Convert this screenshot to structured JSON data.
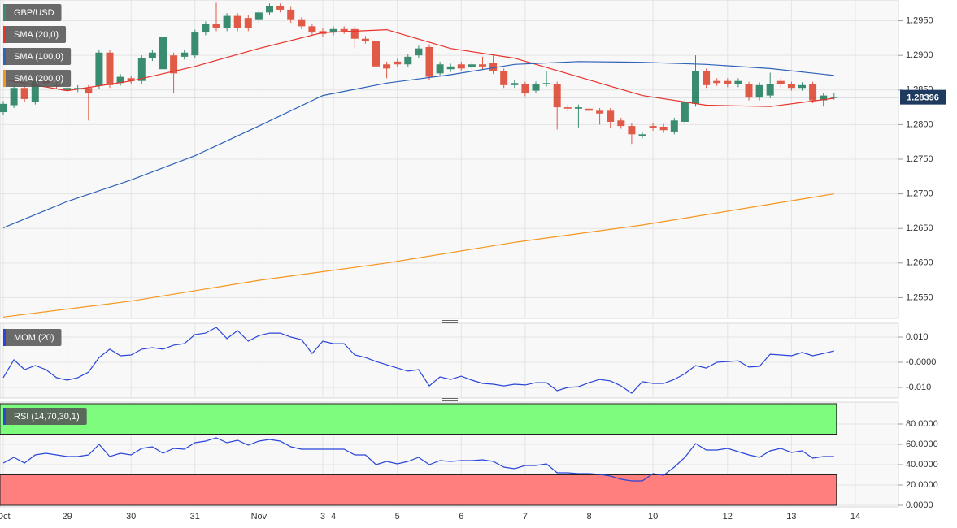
{
  "chart_data": [
    {
      "type": "candlestick",
      "categories": [
        "Oct",
        null,
        null,
        null,
        null,
        null,
        "29",
        null,
        null,
        null,
        null,
        null,
        "30",
        null,
        null,
        null,
        null,
        null,
        "31",
        null,
        null,
        null,
        null,
        null,
        "Nov",
        null,
        null,
        null,
        null,
        null,
        "3",
        "4",
        null,
        null,
        null,
        null,
        null,
        "5",
        null,
        null,
        null,
        null,
        null,
        "6",
        null,
        null,
        null,
        null,
        null,
        "7",
        null,
        null,
        null,
        null,
        null,
        "8",
        null,
        null,
        null,
        null,
        null,
        "10",
        null,
        null,
        null,
        null,
        null,
        null,
        "12",
        null,
        null,
        null,
        null,
        null,
        "13",
        null,
        null,
        null,
        null,
        null,
        "14"
      ],
      "series": [
        {
          "name": "GBP/USD",
          "color": "#3a8c70",
          "up_color": "#3a8c70",
          "down_color": "#e05a47",
          "open": [
            1.2818,
            1.2828,
            1.2853,
            1.2833,
            1.2863,
            1.2857,
            1.2849,
            1.2851,
            1.2853,
            1.2856,
            1.2904,
            1.286,
            1.2867,
            1.2863,
            1.2896,
            1.288,
            1.29,
            1.2898,
            1.29,
            1.2933,
            1.2945,
            1.2939,
            1.2957,
            1.2954,
            1.2951,
            1.2962,
            1.2971,
            1.2966,
            1.2951,
            1.2942,
            1.2935,
            1.2933,
            1.2938,
            1.2938,
            1.2924,
            1.2921,
            1.2887,
            1.2891,
            1.2887,
            1.29,
            1.2912,
            1.2874,
            1.288,
            1.2887,
            1.2883,
            1.2887,
            1.2889,
            1.2877,
            1.2857,
            1.2858,
            1.2849,
            1.2859,
            1.2858,
            1.2825,
            1.2823,
            1.2823,
            1.282,
            1.282,
            1.2806,
            1.2798,
            1.2784,
            1.2798,
            1.2797,
            1.279,
            1.2804,
            1.283,
            1.2877,
            1.2863,
            1.2863,
            1.2858,
            1.2858,
            1.2839,
            1.2842,
            1.2863,
            1.2858,
            1.2853,
            1.2858,
            1.2835,
            1.2839,
            null,
            null
          ],
          "high": [
            1.2834,
            1.2857,
            1.2857,
            1.2867,
            1.2867,
            1.2861,
            1.2857,
            1.2857,
            1.2857,
            1.2908,
            1.2908,
            1.2873,
            1.2871,
            1.29,
            1.2908,
            1.2931,
            1.2904,
            1.2908,
            1.2937,
            1.2949,
            1.2976,
            1.2961,
            1.2961,
            1.2958,
            1.2966,
            1.2975,
            1.2975,
            1.297,
            1.2955,
            1.2946,
            1.2939,
            1.2942,
            1.2942,
            1.2942,
            1.2928,
            1.2925,
            1.2891,
            1.2895,
            1.2902,
            1.2914,
            1.2916,
            1.2891,
            1.2888,
            1.2891,
            1.2891,
            1.2898,
            1.29,
            1.2881,
            1.2864,
            1.2862,
            1.2862,
            1.2877,
            1.2862,
            1.2829,
            1.2829,
            1.2827,
            1.2824,
            1.2824,
            1.281,
            1.2802,
            1.279,
            1.2802,
            1.2801,
            1.281,
            1.2837,
            1.29,
            1.2881,
            1.2867,
            1.2867,
            1.2867,
            1.2862,
            1.2861,
            1.2875,
            1.2867,
            1.2862,
            1.2861,
            1.2862,
            1.2846,
            1.2846,
            null,
            null
          ],
          "low": [
            1.2814,
            1.2824,
            1.2833,
            1.2829,
            1.2856,
            1.2852,
            1.2845,
            1.2847,
            1.2806,
            1.2852,
            1.2853,
            1.2856,
            1.2859,
            1.2859,
            1.2892,
            1.2876,
            1.2845,
            1.2894,
            1.2896,
            1.2929,
            1.2935,
            1.2935,
            1.2935,
            1.2935,
            1.2947,
            1.2958,
            1.2962,
            1.2947,
            1.2938,
            1.2929,
            1.2927,
            1.2929,
            1.2931,
            1.291,
            1.2917,
            1.288,
            1.2867,
            1.2883,
            1.2883,
            1.2896,
            1.2865,
            1.287,
            1.2876,
            1.2877,
            1.2879,
            1.288,
            1.2873,
            1.2853,
            1.2853,
            1.2841,
            1.2845,
            1.2855,
            1.2793,
            1.2819,
            1.2796,
            1.2816,
            1.28,
            1.2795,
            1.2794,
            1.2772,
            1.278,
            1.2791,
            1.2788,
            1.2786,
            1.28,
            1.2826,
            1.2853,
            1.2856,
            1.2854,
            1.2854,
            1.2835,
            1.2835,
            1.2838,
            1.2854,
            1.2849,
            1.2849,
            1.2831,
            1.2826,
            1.2836,
            null,
            null
          ],
          "close": [
            1.283,
            1.2853,
            1.2837,
            1.2863,
            1.286,
            1.2856,
            1.2853,
            1.2853,
            1.2845,
            1.2904,
            1.2857,
            1.2869,
            1.2863,
            1.2896,
            1.2904,
            1.2927,
            1.2874,
            1.2904,
            1.2933,
            1.2945,
            1.2939,
            1.2957,
            1.2939,
            1.2939,
            1.2962,
            1.2971,
            1.2966,
            1.2951,
            1.2942,
            1.2933,
            1.2931,
            1.2938,
            1.2935,
            1.2924,
            1.2921,
            1.2884,
            1.2881,
            1.2887,
            1.2898,
            1.291,
            1.2869,
            1.2887,
            1.2884,
            1.2881,
            1.2887,
            1.2884,
            1.2877,
            1.2857,
            1.286,
            1.2845,
            1.2858,
            1.286,
            1.2825,
            1.2823,
            1.2825,
            1.282,
            1.2816,
            1.2804,
            1.2798,
            1.2786,
            1.2786,
            1.2795,
            1.2792,
            1.2806,
            1.2833,
            1.2877,
            1.2857,
            1.286,
            1.2858,
            1.2863,
            1.2839,
            1.2857,
            1.2859,
            1.2858,
            1.2853,
            1.2857,
            1.2835,
            1.2842,
            1.28396,
            null,
            null
          ]
        },
        {
          "name": "SMA (20,0)",
          "color": "#e8322a",
          "x": [
            0,
            6,
            12,
            18,
            24,
            30,
            36,
            42,
            48,
            54,
            60,
            66,
            72,
            78
          ],
          "values": [
            1.2865,
            1.2849,
            1.2863,
            1.2884,
            1.291,
            1.2933,
            1.2937,
            1.291,
            1.2896,
            1.2869,
            1.2842,
            1.2828,
            1.2826,
            1.2838
          ]
        },
        {
          "name": "SMA (100,0)",
          "color": "#2f62b8",
          "x": [
            0,
            6,
            12,
            18,
            24,
            30,
            36,
            42,
            48,
            54,
            60,
            66,
            72,
            78
          ],
          "values": [
            1.2651,
            1.2689,
            1.272,
            1.2755,
            1.2798,
            1.2842,
            1.286,
            1.2872,
            1.2887,
            1.2891,
            1.289,
            1.2887,
            1.2881,
            1.2871
          ]
        },
        {
          "name": "SMA (200,0)",
          "color": "#f5961e",
          "x": [
            0,
            12,
            24,
            36,
            48,
            60,
            72,
            78
          ],
          "values": [
            1.2522,
            1.2545,
            1.2575,
            1.26,
            1.263,
            1.2655,
            1.2685,
            1.27
          ]
        }
      ],
      "last_price": 1.28396,
      "ylim": [
        1.252,
        1.298
      ],
      "yticks": [
        {
          "value": 1.255,
          "label": "1.2550"
        },
        {
          "value": 1.26,
          "label": "1.2600"
        },
        {
          "value": 1.265,
          "label": "1.2650"
        },
        {
          "value": 1.27,
          "label": "1.2700"
        },
        {
          "value": 1.275,
          "label": "1.2750"
        },
        {
          "value": 1.28,
          "label": "1.2800"
        },
        {
          "value": 1.285,
          "label": "1.2850"
        },
        {
          "value": 1.29,
          "label": "1.2900"
        },
        {
          "value": 1.295,
          "label": "1.2950"
        }
      ],
      "grid": true
    },
    {
      "type": "line",
      "series": [
        {
          "name": "MOM (20)",
          "color": "#2a45d8",
          "values": [
            -0.0061,
            0.001,
            -0.0029,
            -0.0013,
            -0.0029,
            -0.0061,
            -0.0071,
            -0.0061,
            -0.0039,
            0.0019,
            0.0052,
            0.0026,
            0.0029,
            0.0052,
            0.0058,
            0.0052,
            0.0068,
            0.0074,
            0.011,
            0.0116,
            0.0139,
            0.0094,
            0.0126,
            0.0084,
            0.0106,
            0.0116,
            0.0116,
            0.01,
            0.009,
            0.0035,
            0.0084,
            0.0074,
            0.0074,
            0.0029,
            0.0019,
            0.0003,
            -0.001,
            -0.0023,
            -0.0035,
            -0.0029,
            -0.0094,
            -0.0058,
            -0.0068,
            -0.0055,
            -0.0071,
            -0.0084,
            -0.0087,
            -0.0094,
            -0.0087,
            -0.009,
            -0.0081,
            -0.0081,
            -0.0113,
            -0.01,
            -0.0097,
            -0.0081,
            -0.0068,
            -0.0074,
            -0.0094,
            -0.0123,
            -0.0077,
            -0.0084,
            -0.0084,
            -0.0068,
            -0.0045,
            -0.0013,
            -0.0023,
            0,
            0.0003,
            0.0006,
            -0.0019,
            -0.0016,
            0.0032,
            0.0029,
            0.0026,
            0.0039,
            0.0026,
            0.0035,
            0.0045,
            null,
            null
          ]
        }
      ],
      "ylim": [
        -0.0142,
        0.0155
      ],
      "yticks": [
        {
          "value": -0.01,
          "label": "-0.010"
        },
        {
          "value": 0,
          "label": "-0.0000"
        },
        {
          "value": 0.01,
          "label": "0.010"
        }
      ],
      "grid": true
    },
    {
      "type": "line",
      "series": [
        {
          "name": "RSI (14,70,30,1)",
          "color": "#2a45d8",
          "values": [
            41.6,
            47.2,
            41.6,
            49.6,
            51.2,
            49.6,
            48,
            48,
            49.6,
            60,
            48,
            51.2,
            49.6,
            56,
            57.6,
            51.2,
            56,
            55.2,
            61.6,
            63.2,
            66.4,
            61.6,
            64,
            59.2,
            63.2,
            64.8,
            63.2,
            57.6,
            55.2,
            55.2,
            55.2,
            55.2,
            55.2,
            49.6,
            49.6,
            40,
            43.2,
            40.8,
            43.2,
            47.2,
            40,
            44,
            43.2,
            44,
            44,
            44.8,
            43.2,
            37.6,
            36,
            39.2,
            39.2,
            40.8,
            32,
            32,
            31.2,
            31.2,
            30.4,
            28.8,
            25.6,
            24,
            24,
            31.2,
            29.6,
            37.6,
            47.2,
            60.8,
            54.4,
            54.4,
            56,
            52.8,
            49.6,
            47.2,
            53.6,
            56,
            52,
            53.6,
            46.4,
            48,
            48,
            null,
            null
          ]
        }
      ],
      "zones": [
        {
          "from": 70,
          "to": 100,
          "color": "#7dfc7d"
        },
        {
          "from": 0,
          "to": 30,
          "color": "#ff7f7f"
        }
      ],
      "ylim": [
        -1.6,
        101.6
      ],
      "yticks": [
        {
          "value": 0,
          "label": "0.0000"
        },
        {
          "value": 20,
          "label": "20.0000"
        },
        {
          "value": 40,
          "label": "40.0000"
        },
        {
          "value": 60,
          "label": "60.0000"
        },
        {
          "value": 80,
          "label": "80.0000"
        }
      ],
      "grid": true
    }
  ]
}
